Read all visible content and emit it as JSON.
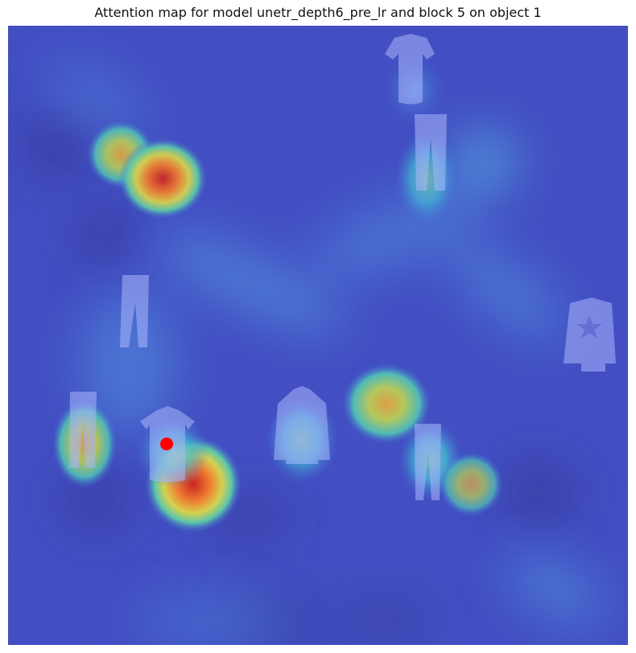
{
  "title": "Attention map for model unetr_depth6_pre_lr and block 5 on object 1",
  "image": {
    "background_color": "#3f4cc4",
    "colormap": "jet",
    "query_marker_color": "#ff0000",
    "objects": [
      "t-shirt",
      "trousers",
      "trousers",
      "sweater-with-star",
      "trousers",
      "t-shirt",
      "shirt",
      "trousers"
    ],
    "query_object": 1
  }
}
